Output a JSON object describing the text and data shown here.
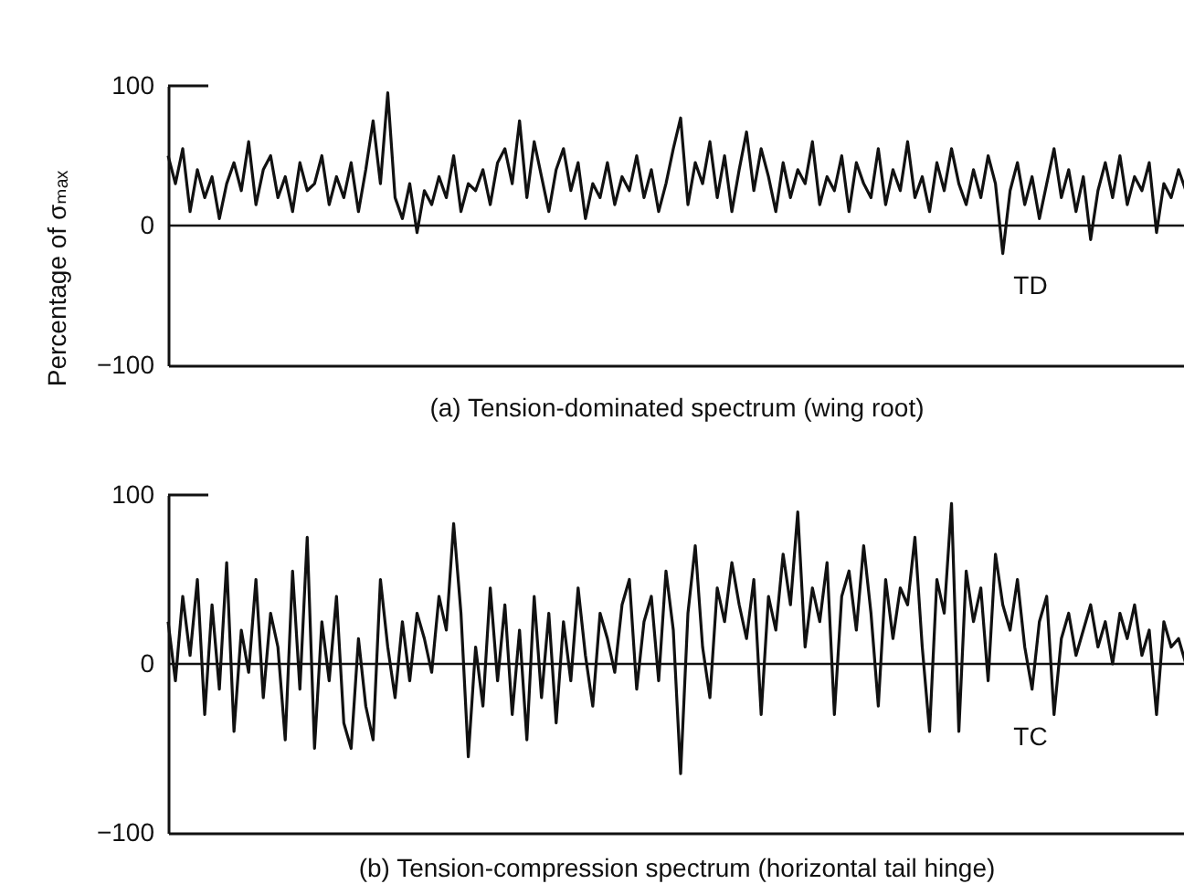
{
  "chart_data": [
    {
      "type": "line",
      "title": "(a) Tension-dominated spectrum (wing root)",
      "ylabel": "Percentage of σₘₐₓ",
      "annotations": [
        "TD"
      ],
      "categories": [
        null,
        null,
        null,
        null,
        null,
        null,
        null,
        null,
        null,
        null,
        null,
        null,
        null,
        null,
        null,
        null,
        null,
        null,
        null,
        null,
        null,
        null,
        null,
        null,
        null,
        null,
        null,
        null,
        null,
        null,
        null,
        null,
        null,
        null,
        null,
        null,
        null,
        null,
        null,
        null,
        null,
        null,
        null,
        null,
        null,
        null,
        null,
        null,
        null,
        null,
        null,
        null,
        null,
        null,
        null,
        null,
        null,
        null,
        null,
        null,
        null,
        null,
        null,
        null,
        null,
        null,
        null,
        null,
        null,
        null,
        null,
        null,
        null,
        null,
        null,
        null,
        null,
        null,
        null,
        null,
        null,
        null,
        null,
        null,
        null,
        null,
        null,
        null,
        null,
        null,
        null,
        null,
        null,
        null,
        null,
        null,
        null,
        null,
        null,
        null,
        null,
        null,
        null,
        null,
        null,
        null,
        null,
        null,
        null,
        null,
        null,
        null,
        null,
        null,
        null,
        null,
        null,
        null,
        null,
        null,
        null,
        null,
        null,
        null,
        null,
        null,
        null,
        null,
        null,
        null,
        null,
        null,
        null,
        null,
        null,
        null,
        null,
        null,
        null,
        null
      ],
      "series": [
        {
          "color": "#111111",
          "values": [
            50,
            30,
            55,
            10,
            40,
            20,
            35,
            5,
            30,
            45,
            25,
            60,
            15,
            40,
            50,
            20,
            35,
            10,
            45,
            25,
            30,
            50,
            15,
            35,
            20,
            45,
            10,
            40,
            75,
            30,
            95,
            20,
            5,
            30,
            -5,
            25,
            15,
            35,
            20,
            50,
            10,
            30,
            25,
            40,
            15,
            45,
            55,
            30,
            75,
            20,
            60,
            35,
            10,
            40,
            55,
            25,
            45,
            5,
            30,
            20,
            45,
            15,
            35,
            25,
            50,
            20,
            40,
            10,
            30,
            55,
            77,
            15,
            45,
            30,
            60,
            20,
            50,
            10,
            40,
            67,
            25,
            55,
            35,
            10,
            45,
            20,
            40,
            30,
            60,
            15,
            35,
            25,
            50,
            10,
            45,
            30,
            20,
            55,
            15,
            40,
            25,
            60,
            20,
            35,
            10,
            45,
            25,
            55,
            30,
            15,
            40,
            20,
            50,
            30,
            -20,
            25,
            45,
            15,
            35,
            5,
            30,
            55,
            20,
            40,
            10,
            35,
            -10,
            25,
            45,
            20,
            50,
            15,
            35,
            25,
            45,
            -5,
            30,
            20,
            40,
            25
          ]
        }
      ],
      "ylim": [
        -100,
        100
      ],
      "yticks": [
        -100,
        0,
        100
      ],
      "tick_labels": "y",
      "ref_lines": [
        {
          "axis": "y",
          "value": 0,
          "color": "#111111"
        }
      ],
      "line_style": "solid"
    },
    {
      "type": "line",
      "title": "(b) Tension-compression spectrum (horizontal tail hinge)",
      "annotations": [
        "TC"
      ],
      "categories": [
        null,
        null,
        null,
        null,
        null,
        null,
        null,
        null,
        null,
        null,
        null,
        null,
        null,
        null,
        null,
        null,
        null,
        null,
        null,
        null,
        null,
        null,
        null,
        null,
        null,
        null,
        null,
        null,
        null,
        null,
        null,
        null,
        null,
        null,
        null,
        null,
        null,
        null,
        null,
        null,
        null,
        null,
        null,
        null,
        null,
        null,
        null,
        null,
        null,
        null,
        null,
        null,
        null,
        null,
        null,
        null,
        null,
        null,
        null,
        null,
        null,
        null,
        null,
        null,
        null,
        null,
        null,
        null,
        null,
        null,
        null,
        null,
        null,
        null,
        null,
        null,
        null,
        null,
        null,
        null,
        null,
        null,
        null,
        null,
        null,
        null,
        null,
        null,
        null,
        null,
        null,
        null,
        null,
        null,
        null,
        null,
        null,
        null,
        null,
        null,
        null,
        null,
        null,
        null,
        null,
        null,
        null,
        null,
        null,
        null,
        null,
        null,
        null,
        null,
        null,
        null,
        null,
        null,
        null,
        null,
        null,
        null,
        null,
        null,
        null,
        null,
        null,
        null,
        null,
        null,
        null,
        null,
        null,
        null,
        null,
        null,
        null,
        null,
        null,
        null
      ],
      "series": [
        {
          "color": "#111111",
          "values": [
            25,
            -10,
            40,
            5,
            50,
            -30,
            35,
            -15,
            60,
            -40,
            20,
            -5,
            50,
            -20,
            30,
            10,
            -45,
            55,
            -15,
            75,
            -50,
            25,
            -10,
            40,
            -35,
            -50,
            15,
            -25,
            -45,
            50,
            10,
            -20,
            25,
            -10,
            30,
            15,
            -5,
            40,
            20,
            83,
            30,
            -55,
            10,
            -25,
            45,
            -10,
            35,
            -30,
            20,
            -45,
            40,
            -20,
            30,
            -35,
            25,
            -10,
            45,
            5,
            -25,
            30,
            15,
            -5,
            35,
            50,
            -15,
            25,
            40,
            -10,
            55,
            20,
            -65,
            30,
            70,
            10,
            -20,
            45,
            25,
            60,
            35,
            15,
            50,
            -30,
            40,
            20,
            65,
            35,
            90,
            10,
            45,
            25,
            60,
            -30,
            40,
            55,
            20,
            70,
            30,
            -25,
            50,
            15,
            45,
            35,
            75,
            10,
            -40,
            50,
            30,
            95,
            -40,
            55,
            25,
            45,
            -10,
            65,
            35,
            20,
            50,
            10,
            -15,
            25,
            40,
            -30,
            15,
            30,
            5,
            20,
            35,
            10,
            25,
            0,
            30,
            15,
            35,
            5,
            20,
            -30,
            25,
            10,
            15,
            0
          ]
        }
      ],
      "ylim": [
        -100,
        100
      ],
      "yticks": [
        -100,
        0,
        100
      ],
      "tick_labels": "y",
      "ref_lines": [
        {
          "axis": "y",
          "value": 0,
          "color": "#111111"
        }
      ],
      "line_style": "solid"
    }
  ]
}
